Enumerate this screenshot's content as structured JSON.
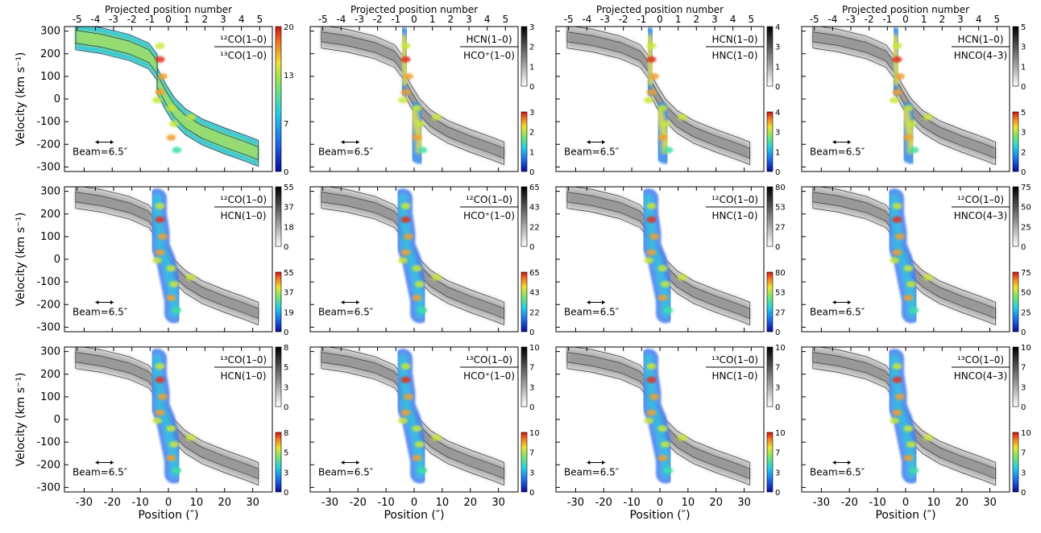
{
  "figure": {
    "xlabel": "Position (″)",
    "ylabel": "Velocity (km s⁻¹)",
    "top_axis_label": "Projected position number",
    "beam_label": "Beam=6.5″"
  },
  "chart_data": {
    "type": "heatmap",
    "layout": {
      "rows": 3,
      "cols": 4
    },
    "x_range": [
      -37,
      37
    ],
    "y_range": [
      -320,
      320
    ],
    "x_ticks": [
      -30,
      -20,
      -10,
      0,
      10,
      20,
      30
    ],
    "y_ticks": [
      -300,
      -200,
      -100,
      0,
      100,
      200,
      300
    ],
    "top_ticks": [
      -5,
      -4,
      -3,
      -2,
      -1,
      0,
      1,
      2,
      3,
      4,
      5
    ],
    "top_tick_spacing": 6.5,
    "beam_size": 6.5,
    "panels": [
      {
        "row": 0,
        "col": 0,
        "numerator": "¹²CO(1–0)",
        "denominator": "¹³CO(1–0)",
        "colorbar_color_ticks": [
          "0",
          "7",
          "13",
          "20"
        ],
        "colorbar_gray_ticks": [],
        "layers": "full-color"
      },
      {
        "row": 0,
        "col": 1,
        "numerator": "HCN(1–0)",
        "denominator": "HCO⁺(1–0)",
        "colorbar_gray_ticks": [
          "0",
          "1",
          "2",
          "3"
        ],
        "colorbar_color_ticks": [
          "0",
          "1",
          "2",
          "3"
        ],
        "layers": "split"
      },
      {
        "row": 0,
        "col": 2,
        "numerator": "HCN(1–0)",
        "denominator": "HNC(1–0)",
        "colorbar_gray_ticks": [
          "0",
          "1",
          "3",
          "4"
        ],
        "colorbar_color_ticks": [
          "0",
          "1",
          "3",
          "4"
        ],
        "layers": "split"
      },
      {
        "row": 0,
        "col": 3,
        "numerator": "HCN(1–0)",
        "denominator": "HNCO(4–3)",
        "colorbar_gray_ticks": [
          "0",
          "1",
          "3",
          "5"
        ],
        "colorbar_color_ticks": [
          "0",
          "2",
          "3",
          "5"
        ],
        "layers": "split"
      },
      {
        "row": 1,
        "col": 0,
        "numerator": "¹²CO(1–0)",
        "denominator": "HCN(1–0)",
        "colorbar_gray_ticks": [
          "0",
          "18",
          "37",
          "55"
        ],
        "colorbar_color_ticks": [
          "0",
          "19",
          "37",
          "55"
        ],
        "layers": "gray+color"
      },
      {
        "row": 1,
        "col": 1,
        "numerator": "¹²CO(1–0)",
        "denominator": "HCO⁺(1–0)",
        "colorbar_gray_ticks": [
          "0",
          "22",
          "43",
          "65"
        ],
        "colorbar_color_ticks": [
          "0",
          "22",
          "43",
          "65"
        ],
        "layers": "gray+color"
      },
      {
        "row": 1,
        "col": 2,
        "numerator": "¹²CO(1–0)",
        "denominator": "HNC(1–0)",
        "colorbar_gray_ticks": [
          "0",
          "27",
          "53",
          "80"
        ],
        "colorbar_color_ticks": [
          "0",
          "27",
          "53",
          "80"
        ],
        "layers": "gray+color"
      },
      {
        "row": 1,
        "col": 3,
        "numerator": "¹²CO(1–0)",
        "denominator": "HNCO(4–3)",
        "colorbar_gray_ticks": [
          "0",
          "25",
          "50",
          "75"
        ],
        "colorbar_color_ticks": [
          "0",
          "25",
          "50",
          "75"
        ],
        "layers": "gray+color"
      },
      {
        "row": 2,
        "col": 0,
        "numerator": "¹³CO(1–0)",
        "denominator": "HCN(1–0)",
        "colorbar_gray_ticks": [
          "0",
          "3",
          "5",
          "8"
        ],
        "colorbar_color_ticks": [
          "0",
          "3",
          "5",
          "8"
        ],
        "layers": "gray+color"
      },
      {
        "row": 2,
        "col": 1,
        "numerator": "¹³CO(1–0)",
        "denominator": "HCO⁺(1–0)",
        "colorbar_gray_ticks": [
          "0",
          "3",
          "7",
          "10"
        ],
        "colorbar_color_ticks": [
          "0",
          "3",
          "7",
          "10"
        ],
        "layers": "gray+color"
      },
      {
        "row": 2,
        "col": 2,
        "numerator": "¹³CO(1–0)",
        "denominator": "HNC(1–0)",
        "colorbar_gray_ticks": [
          "0",
          "3",
          "7",
          "10"
        ],
        "colorbar_color_ticks": [
          "0",
          "3",
          "7",
          "10"
        ],
        "layers": "gray+color"
      },
      {
        "row": 2,
        "col": 3,
        "numerator": "¹³CO(1–0)",
        "denominator": "HNCO(4–3)",
        "colorbar_gray_ticks": [
          "0",
          "3",
          "7",
          "10"
        ],
        "colorbar_color_ticks": [
          "0",
          "3",
          "7",
          "10"
        ],
        "layers": "gray+color"
      }
    ],
    "wide_ridge": [
      [
        -33,
        275
      ],
      [
        -24,
        258
      ],
      [
        -14,
        228
      ],
      [
        -7,
        190
      ],
      [
        -4,
        140
      ],
      [
        -4,
        80
      ],
      [
        -1,
        10
      ],
      [
        2,
        -50
      ],
      [
        6,
        -100
      ],
      [
        12,
        -145
      ],
      [
        20,
        -185
      ],
      [
        28,
        -220
      ],
      [
        32,
        -240
      ]
    ],
    "narrow_ridge": [
      [
        -4,
        270
      ],
      [
        -4,
        200
      ],
      [
        -3,
        120
      ],
      [
        -3,
        60
      ],
      [
        -1,
        0
      ],
      [
        0,
        -60
      ],
      [
        1,
        -120
      ],
      [
        2,
        -180
      ],
      [
        2,
        -240
      ]
    ],
    "blobs": [
      {
        "x": -3,
        "y": 235,
        "v": 0.7
      },
      {
        "x": -3,
        "y": 175,
        "v": 0.9
      },
      {
        "x": -2,
        "y": 100,
        "v": 0.75
      },
      {
        "x": -3,
        "y": 30,
        "v": 0.85
      },
      {
        "x": 1,
        "y": -40,
        "v": 0.6
      },
      {
        "x": 2,
        "y": -110,
        "v": 0.7
      },
      {
        "x": 1,
        "y": -170,
        "v": 0.8
      },
      {
        "x": 3,
        "y": -225,
        "v": 0.55
      },
      {
        "x": -4,
        "y": -5,
        "v": 0.65
      },
      {
        "x": 8,
        "y": -80,
        "v": 0.6
      }
    ],
    "colormap": [
      "#1a1fb0",
      "#2b6cf0",
      "#21b6e8",
      "#3fe0a0",
      "#c8e83a",
      "#f0a030",
      "#e03020"
    ]
  }
}
